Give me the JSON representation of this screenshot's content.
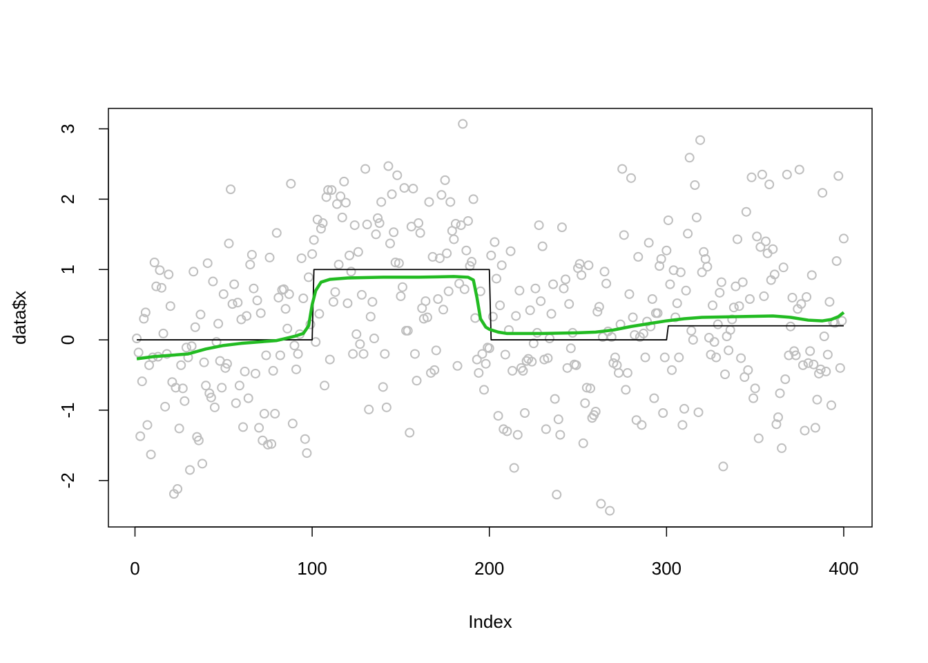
{
  "chart_data": {
    "type": "scatter",
    "x_label": "Index",
    "y_label": "data$x",
    "xlim": [
      -15,
      416
    ],
    "ylim": [
      -2.66,
      3.29
    ],
    "xticks": [
      0,
      100,
      200,
      300,
      400
    ],
    "yticks": [
      -2,
      -1,
      0,
      1,
      2,
      3
    ],
    "series": [
      {
        "type": "scatter",
        "color": "#bebebe",
        "x": [
          1,
          2,
          3,
          4,
          5,
          6,
          7,
          8,
          9,
          10,
          11,
          12,
          13,
          14,
          15,
          16,
          17,
          18,
          19,
          20,
          21,
          22,
          23,
          24,
          25,
          26,
          27,
          28,
          29,
          30,
          31,
          32,
          33,
          34,
          35,
          36,
          37,
          38,
          39,
          40,
          41,
          42,
          43,
          44,
          45,
          46,
          47,
          48,
          49,
          50,
          51,
          52,
          53,
          54,
          55,
          56,
          57,
          58,
          59,
          60,
          61,
          62,
          63,
          64,
          65,
          66,
          67,
          68,
          69,
          70,
          71,
          72,
          73,
          74,
          75,
          76,
          77,
          78,
          79,
          80,
          81,
          82,
          83,
          84,
          85,
          86,
          87,
          88,
          89,
          90,
          91,
          92,
          93,
          94,
          95,
          96,
          97,
          98,
          99,
          100,
          101,
          102,
          103,
          104,
          105,
          106,
          107,
          108,
          109,
          110,
          111,
          112,
          113,
          114,
          115,
          116,
          117,
          118,
          119,
          120,
          121,
          122,
          123,
          124,
          125,
          126,
          127,
          128,
          129,
          130,
          131,
          132,
          133,
          134,
          135,
          136,
          137,
          138,
          139,
          140,
          141,
          142,
          143,
          144,
          145,
          146,
          147,
          148,
          149,
          150,
          151,
          152,
          153,
          154,
          155,
          156,
          157,
          158,
          159,
          160,
          161,
          162,
          163,
          164,
          165,
          166,
          167,
          168,
          169,
          170,
          171,
          172,
          173,
          174,
          175,
          176,
          177,
          178,
          179,
          180,
          181,
          182,
          183,
          184,
          185,
          186,
          187,
          188,
          189,
          190,
          191,
          192,
          193,
          194,
          195,
          196,
          197,
          198,
          199,
          200,
          201,
          202,
          203,
          204,
          205,
          206,
          207,
          208,
          209,
          210,
          211,
          212,
          213,
          214,
          215,
          216,
          217,
          218,
          219,
          220,
          221,
          222,
          223,
          224,
          225,
          226,
          227,
          228,
          229,
          230,
          231,
          232,
          233,
          234,
          235,
          236,
          237,
          238,
          239,
          240,
          241,
          242,
          243,
          244,
          245,
          246,
          247,
          248,
          249,
          250,
          251,
          252,
          253,
          254,
          255,
          256,
          257,
          258,
          259,
          260,
          261,
          262,
          263,
          264,
          265,
          266,
          267,
          268,
          269,
          270,
          271,
          272,
          273,
          274,
          275,
          276,
          277,
          278,
          279,
          280,
          281,
          282,
          283,
          284,
          285,
          286,
          287,
          288,
          289,
          290,
          291,
          292,
          293,
          294,
          295,
          296,
          297,
          298,
          299,
          300,
          301,
          302,
          303,
          304,
          305,
          306,
          307,
          308,
          309,
          310,
          311,
          312,
          313,
          314,
          315,
          316,
          317,
          318,
          319,
          320,
          321,
          322,
          323,
          324,
          325,
          326,
          327,
          328,
          329,
          330,
          331,
          332,
          333,
          334,
          335,
          336,
          337,
          338,
          339,
          340,
          341,
          342,
          343,
          344,
          345,
          346,
          347,
          348,
          349,
          350,
          351,
          352,
          353,
          354,
          355,
          356,
          357,
          358,
          359,
          360,
          361,
          362,
          363,
          364,
          365,
          366,
          367,
          368,
          369,
          370,
          371,
          372,
          373,
          374,
          375,
          376,
          377,
          378,
          379,
          380,
          381,
          382,
          383,
          384,
          385,
          386,
          387,
          388,
          389,
          390,
          391,
          392,
          393,
          394,
          395,
          396,
          397,
          398,
          399,
          400
        ],
        "values": [
          0.02,
          -0.18,
          -1.37,
          -0.59,
          0.3,
          0.39,
          -1.21,
          -0.36,
          -1.63,
          -0.25,
          1.1,
          0.76,
          -0.24,
          0.99,
          0.74,
          0.09,
          -0.95,
          -0.2,
          0.93,
          0.48,
          -0.6,
          -2.19,
          -0.68,
          -2.12,
          -1.26,
          -0.36,
          -0.69,
          -0.87,
          -0.11,
          -0.25,
          -1.85,
          -0.09,
          0.97,
          0.18,
          -1.38,
          -1.43,
          0.36,
          -1.76,
          -0.32,
          -0.65,
          1.09,
          -0.76,
          -0.82,
          0.83,
          -0.96,
          -0.03,
          0.23,
          -0.3,
          -0.68,
          0.65,
          -0.4,
          -0.34,
          1.37,
          2.14,
          0.51,
          0.79,
          -0.9,
          0.53,
          -0.65,
          0.29,
          -1.24,
          -0.45,
          0.34,
          -0.83,
          1.07,
          1.21,
          0.73,
          -0.48,
          0.56,
          -1.25,
          0.38,
          -1.43,
          -1.05,
          -0.22,
          -1.49,
          1.17,
          -1.48,
          -0.44,
          -1.05,
          1.52,
          0.6,
          -0.22,
          0.71,
          0.72,
          0.44,
          0.16,
          0.65,
          2.22,
          -1.19,
          -0.08,
          -0.42,
          -0.2,
          0.08,
          1.16,
          0.59,
          -1.41,
          -1.61,
          0.89,
          0.22,
          1.22,
          1.42,
          -0.03,
          1.71,
          0.37,
          1.58,
          1.66,
          -0.65,
          2.03,
          2.13,
          -0.28,
          2.13,
          0.54,
          0.68,
          1.93,
          1.07,
          2.04,
          1.74,
          2.25,
          1.95,
          0.52,
          1.2,
          0.97,
          -0.2,
          1.63,
          0.08,
          1.25,
          -0.06,
          0.64,
          -0.2,
          2.43,
          1.64,
          -0.99,
          0.33,
          0.54,
          0.02,
          1.5,
          1.73,
          1.66,
          1.96,
          -0.67,
          -0.2,
          -0.96,
          2.47,
          1.37,
          2.07,
          1.53,
          1.1,
          2.34,
          1.09,
          0.62,
          0.75,
          2.16,
          0.13,
          0.13,
          -1.32,
          1.61,
          2.15,
          -0.2,
          -0.58,
          1.66,
          1.52,
          0.45,
          0.3,
          0.55,
          0.32,
          1.96,
          -0.47,
          1.18,
          -0.43,
          -0.15,
          0.58,
          1.16,
          2.06,
          0.43,
          2.27,
          1.23,
          0.69,
          1.96,
          1.55,
          1.43,
          1.65,
          -0.37,
          0.8,
          1.63,
          3.07,
          0.72,
          1.27,
          1.69,
          1.05,
          1.11,
          2.0,
          0.31,
          -0.28,
          -0.47,
          0.69,
          -0.2,
          -0.71,
          -0.34,
          -0.11,
          -0.12,
          1.2,
          0.33,
          1.39,
          0.87,
          -1.08,
          0.49,
          1.06,
          -1.27,
          -0.21,
          -1.3,
          0.14,
          1.26,
          -0.44,
          -1.82,
          0.34,
          -1.35,
          0.7,
          -0.4,
          -0.44,
          -1.04,
          -0.3,
          -0.27,
          0.42,
          -0.31,
          -0.05,
          0.73,
          0.1,
          1.63,
          0.55,
          1.33,
          -0.28,
          -1.27,
          -0.26,
          0.02,
          0.37,
          0.79,
          -0.84,
          -2.2,
          -1.13,
          -1.35,
          1.6,
          0.73,
          0.86,
          -0.4,
          0.51,
          -0.12,
          0.1,
          -0.35,
          -0.36,
          1.02,
          1.08,
          0.92,
          -1.47,
          -0.9,
          -0.68,
          1.06,
          -0.69,
          -1.11,
          -1.07,
          -1.02,
          0.4,
          0.47,
          -2.33,
          0.04,
          0.97,
          0.8,
          0.12,
          -2.43,
          0.04,
          -0.33,
          -0.25,
          -0.36,
          -0.47,
          0.22,
          2.43,
          1.49,
          -0.71,
          -0.47,
          0.65,
          2.3,
          0.32,
          0.07,
          -1.14,
          1.18,
          0.04,
          -1.21,
          0.09,
          -0.25,
          0.26,
          1.38,
          0.19,
          0.58,
          -0.83,
          0.38,
          0.38,
          1.05,
          1.15,
          -1.04,
          -0.25,
          1.27,
          1.7,
          0.79,
          -0.43,
          0.99,
          0.32,
          0.52,
          -0.25,
          0.96,
          -1.21,
          -0.98,
          0.7,
          1.51,
          2.59,
          0.13,
          0.0,
          2.2,
          1.74,
          -1.03,
          2.84,
          0.96,
          1.25,
          1.15,
          1.04,
          0.03,
          -0.21,
          0.49,
          -0.03,
          -0.25,
          0.22,
          0.67,
          0.82,
          -1.8,
          -0.49,
          0.05,
          -0.15,
          0.14,
          0.29,
          0.46,
          0.76,
          1.43,
          0.48,
          -0.26,
          0.82,
          -0.53,
          1.82,
          -0.43,
          0.58,
          2.31,
          -0.83,
          -0.69,
          1.47,
          -1.4,
          1.32,
          2.35,
          0.62,
          1.4,
          1.23,
          2.21,
          0.85,
          1.29,
          0.93,
          -1.2,
          -1.1,
          -0.76,
          -1.54,
          1.03,
          -0.56,
          2.35,
          -0.22,
          0.19,
          0.6,
          -0.16,
          -0.22,
          0.44,
          2.42,
          0.51,
          -0.36,
          -1.29,
          0.61,
          -0.33,
          -0.16,
          0.92,
          -0.35,
          -1.25,
          -0.85,
          -0.48,
          -0.42,
          2.09,
          0.05,
          -0.45,
          -0.21,
          0.54,
          -0.93,
          0.25,
          0.24,
          1.12,
          2.33,
          -0.4,
          0.27,
          1.44
        ]
      },
      {
        "type": "line",
        "color": "#000000",
        "x": [
          1,
          100,
          101,
          200,
          201,
          300,
          301,
          400
        ],
        "values": [
          0,
          0,
          1,
          1,
          0,
          0,
          0.2,
          0.2
        ]
      },
      {
        "type": "line",
        "color": "#22bb22",
        "x": [
          1,
          10,
          20,
          30,
          40,
          50,
          60,
          70,
          80,
          85,
          90,
          95,
          98,
          100,
          102,
          105,
          110,
          120,
          140,
          160,
          180,
          188,
          191,
          193,
          195,
          198,
          200,
          205,
          210,
          230,
          250,
          260,
          270,
          280,
          290,
          300,
          310,
          320,
          340,
          360,
          370,
          380,
          388,
          393,
          397,
          400
        ],
        "values": [
          -0.27,
          -0.24,
          -0.22,
          -0.2,
          -0.13,
          -0.08,
          -0.05,
          -0.03,
          -0.01,
          0.02,
          0.05,
          0.09,
          0.2,
          0.5,
          0.7,
          0.82,
          0.86,
          0.88,
          0.89,
          0.89,
          0.9,
          0.89,
          0.85,
          0.6,
          0.3,
          0.18,
          0.15,
          0.11,
          0.09,
          0.09,
          0.1,
          0.11,
          0.14,
          0.19,
          0.23,
          0.27,
          0.3,
          0.32,
          0.33,
          0.34,
          0.32,
          0.28,
          0.27,
          0.29,
          0.33,
          0.39
        ]
      }
    ]
  }
}
